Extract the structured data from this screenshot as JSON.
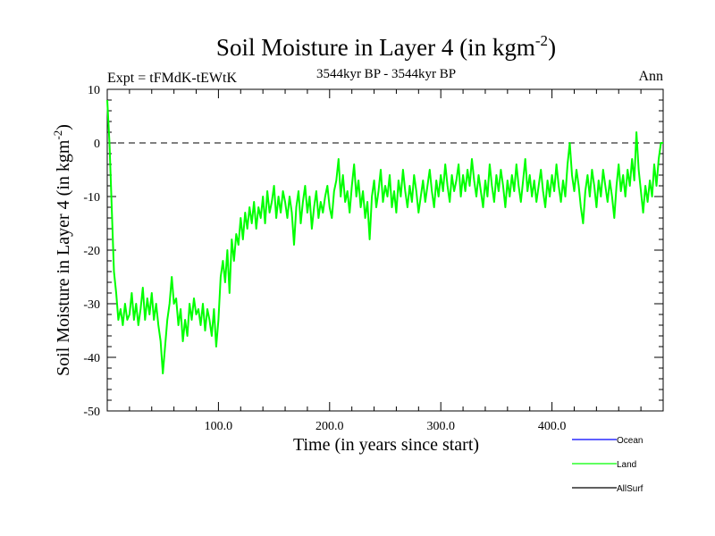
{
  "header": {
    "title": "Soil Moisture in Layer 4 (in kgm",
    "title_sup": "-2",
    "title_close": ")",
    "experiment": "Expt = tFMdK-tEWtK",
    "period": "3544kyr BP - 3544kyr BP",
    "season": "Ann"
  },
  "chart_data": {
    "type": "line",
    "title": "Soil Moisture in Layer 4 (in kgm-2)",
    "xlabel": "Time (in years since start)",
    "ylabel": "Soil Moisture in Layer 4 (in kgm-2)",
    "ylabel_main": "Soil Moisture in Layer 4 (in kgm",
    "ylabel_sup": "-2",
    "ylabel_close": ")",
    "xlim": [
      0,
      500
    ],
    "ylim": [
      -50,
      10
    ],
    "x_ticks": [
      100,
      200,
      300,
      400
    ],
    "x_tick_labels": [
      "100.0",
      "200.0",
      "300.0",
      "400.0"
    ],
    "y_ticks": [
      -50,
      -40,
      -30,
      -20,
      -10,
      0,
      10
    ],
    "y_tick_labels": [
      "-50",
      "-40",
      "-30",
      "-20",
      "-10",
      "0",
      "10"
    ],
    "reference_line": {
      "y": 0,
      "style": "dashed"
    },
    "legend": {
      "placement": "bottom-right",
      "entries": [
        {
          "name": "Ocean",
          "color": "#0000ff"
        },
        {
          "name": "Land",
          "color": "#00ff00"
        },
        {
          "name": "AllSurf",
          "color": "#000000"
        }
      ]
    },
    "series": [
      {
        "name": "Land",
        "color": "#00ff00",
        "points": [
          [
            0,
            8
          ],
          [
            2,
            0
          ],
          [
            4,
            -12
          ],
          [
            6,
            -24
          ],
          [
            8,
            -28
          ],
          [
            10,
            -33
          ],
          [
            12,
            -31
          ],
          [
            14,
            -34
          ],
          [
            16,
            -30
          ],
          [
            18,
            -33
          ],
          [
            20,
            -32
          ],
          [
            22,
            -28
          ],
          [
            24,
            -33
          ],
          [
            26,
            -30
          ],
          [
            28,
            -34
          ],
          [
            30,
            -31
          ],
          [
            32,
            -27
          ],
          [
            34,
            -33
          ],
          [
            36,
            -29
          ],
          [
            38,
            -32
          ],
          [
            40,
            -28
          ],
          [
            42,
            -33
          ],
          [
            44,
            -30
          ],
          [
            46,
            -34
          ],
          [
            48,
            -37
          ],
          [
            50,
            -43
          ],
          [
            52,
            -38
          ],
          [
            54,
            -33
          ],
          [
            56,
            -30
          ],
          [
            58,
            -25
          ],
          [
            60,
            -30
          ],
          [
            62,
            -29
          ],
          [
            64,
            -34
          ],
          [
            66,
            -31
          ],
          [
            68,
            -37
          ],
          [
            70,
            -33
          ],
          [
            72,
            -36
          ],
          [
            74,
            -30
          ],
          [
            76,
            -33
          ],
          [
            78,
            -29
          ],
          [
            80,
            -32
          ],
          [
            82,
            -31
          ],
          [
            84,
            -34
          ],
          [
            86,
            -30
          ],
          [
            88,
            -35
          ],
          [
            90,
            -31
          ],
          [
            92,
            -33
          ],
          [
            94,
            -36
          ],
          [
            96,
            -31
          ],
          [
            98,
            -38
          ],
          [
            100,
            -33
          ],
          [
            102,
            -25
          ],
          [
            104,
            -22
          ],
          [
            106,
            -26
          ],
          [
            108,
            -20
          ],
          [
            110,
            -28
          ],
          [
            112,
            -18
          ],
          [
            114,
            -22
          ],
          [
            116,
            -17
          ],
          [
            118,
            -19
          ],
          [
            120,
            -14
          ],
          [
            122,
            -18
          ],
          [
            124,
            -13
          ],
          [
            126,
            -16
          ],
          [
            128,
            -12
          ],
          [
            130,
            -15
          ],
          [
            132,
            -11
          ],
          [
            134,
            -16
          ],
          [
            136,
            -12
          ],
          [
            138,
            -14
          ],
          [
            140,
            -10
          ],
          [
            142,
            -15
          ],
          [
            144,
            -9
          ],
          [
            146,
            -13
          ],
          [
            148,
            -11
          ],
          [
            150,
            -8
          ],
          [
            152,
            -14
          ],
          [
            154,
            -10
          ],
          [
            156,
            -13
          ],
          [
            158,
            -9
          ],
          [
            160,
            -11
          ],
          [
            162,
            -14
          ],
          [
            164,
            -10
          ],
          [
            166,
            -13
          ],
          [
            168,
            -19
          ],
          [
            170,
            -12
          ],
          [
            172,
            -9
          ],
          [
            174,
            -15
          ],
          [
            176,
            -11
          ],
          [
            178,
            -8
          ],
          [
            180,
            -13
          ],
          [
            182,
            -10
          ],
          [
            184,
            -16
          ],
          [
            186,
            -12
          ],
          [
            188,
            -9
          ],
          [
            190,
            -14
          ],
          [
            192,
            -11
          ],
          [
            194,
            -13
          ],
          [
            196,
            -10
          ],
          [
            198,
            -8
          ],
          [
            200,
            -12
          ],
          [
            202,
            -14
          ],
          [
            204,
            -9
          ],
          [
            206,
            -7
          ],
          [
            208,
            -3
          ],
          [
            210,
            -10
          ],
          [
            212,
            -6
          ],
          [
            214,
            -11
          ],
          [
            216,
            -9
          ],
          [
            218,
            -13
          ],
          [
            220,
            -8
          ],
          [
            222,
            -4
          ],
          [
            224,
            -10
          ],
          [
            226,
            -7
          ],
          [
            228,
            -12
          ],
          [
            230,
            -9
          ],
          [
            232,
            -14
          ],
          [
            234,
            -11
          ],
          [
            236,
            -18
          ],
          [
            238,
            -10
          ],
          [
            240,
            -7
          ],
          [
            242,
            -12
          ],
          [
            244,
            -9
          ],
          [
            246,
            -5
          ],
          [
            248,
            -11
          ],
          [
            250,
            -8
          ],
          [
            252,
            -10
          ],
          [
            254,
            -6
          ],
          [
            256,
            -12
          ],
          [
            258,
            -9
          ],
          [
            260,
            -13
          ],
          [
            262,
            -7
          ],
          [
            264,
            -10
          ],
          [
            266,
            -5
          ],
          [
            268,
            -9
          ],
          [
            270,
            -12
          ],
          [
            272,
            -8
          ],
          [
            274,
            -11
          ],
          [
            276,
            -6
          ],
          [
            278,
            -9
          ],
          [
            280,
            -13
          ],
          [
            282,
            -10
          ],
          [
            284,
            -7
          ],
          [
            286,
            -11
          ],
          [
            288,
            -8
          ],
          [
            290,
            -5
          ],
          [
            292,
            -9
          ],
          [
            294,
            -12
          ],
          [
            296,
            -7
          ],
          [
            298,
            -10
          ],
          [
            300,
            -6
          ],
          [
            302,
            -9
          ],
          [
            304,
            -4
          ],
          [
            306,
            -8
          ],
          [
            308,
            -11
          ],
          [
            310,
            -6
          ],
          [
            312,
            -9
          ],
          [
            314,
            -7
          ],
          [
            316,
            -4
          ],
          [
            318,
            -10
          ],
          [
            320,
            -6
          ],
          [
            322,
            -9
          ],
          [
            324,
            -5
          ],
          [
            326,
            -8
          ],
          [
            328,
            -3
          ],
          [
            330,
            -7
          ],
          [
            332,
            -10
          ],
          [
            334,
            -6
          ],
          [
            336,
            -9
          ],
          [
            338,
            -12
          ],
          [
            340,
            -7
          ],
          [
            342,
            -10
          ],
          [
            344,
            -4
          ],
          [
            346,
            -8
          ],
          [
            348,
            -11
          ],
          [
            350,
            -6
          ],
          [
            352,
            -9
          ],
          [
            354,
            -5
          ],
          [
            356,
            -8
          ],
          [
            358,
            -12
          ],
          [
            360,
            -7
          ],
          [
            362,
            -10
          ],
          [
            364,
            -6
          ],
          [
            366,
            -9
          ],
          [
            368,
            -4
          ],
          [
            370,
            -8
          ],
          [
            372,
            -11
          ],
          [
            374,
            -7
          ],
          [
            376,
            -3
          ],
          [
            378,
            -9
          ],
          [
            380,
            -6
          ],
          [
            382,
            -10
          ],
          [
            384,
            -7
          ],
          [
            386,
            -11
          ],
          [
            388,
            -8
          ],
          [
            390,
            -5
          ],
          [
            392,
            -9
          ],
          [
            394,
            -12
          ],
          [
            396,
            -7
          ],
          [
            398,
            -10
          ],
          [
            400,
            -6
          ],
          [
            402,
            -9
          ],
          [
            404,
            -4
          ],
          [
            406,
            -8
          ],
          [
            408,
            -11
          ],
          [
            410,
            -7
          ],
          [
            412,
            -10
          ],
          [
            414,
            -4
          ],
          [
            416,
            0
          ],
          [
            418,
            -6
          ],
          [
            420,
            -9
          ],
          [
            422,
            -5
          ],
          [
            424,
            -8
          ],
          [
            426,
            -12
          ],
          [
            428,
            -15
          ],
          [
            430,
            -9
          ],
          [
            432,
            -6
          ],
          [
            434,
            -10
          ],
          [
            436,
            -5
          ],
          [
            438,
            -8
          ],
          [
            440,
            -12
          ],
          [
            442,
            -7
          ],
          [
            444,
            -10
          ],
          [
            446,
            -5
          ],
          [
            448,
            -8
          ],
          [
            450,
            -11
          ],
          [
            452,
            -7
          ],
          [
            454,
            -10
          ],
          [
            456,
            -14
          ],
          [
            458,
            -8
          ],
          [
            460,
            -4
          ],
          [
            462,
            -9
          ],
          [
            464,
            -6
          ],
          [
            466,
            -10
          ],
          [
            468,
            -5
          ],
          [
            470,
            -8
          ],
          [
            472,
            -3
          ],
          [
            474,
            -7
          ],
          [
            476,
            2
          ],
          [
            478,
            -5
          ],
          [
            480,
            -9
          ],
          [
            482,
            -13
          ],
          [
            484,
            -8
          ],
          [
            486,
            -11
          ],
          [
            488,
            -7
          ],
          [
            490,
            -10
          ],
          [
            492,
            -4
          ],
          [
            494,
            -8
          ],
          [
            496,
            -3
          ],
          [
            498,
            0
          ],
          [
            500,
            0
          ]
        ]
      }
    ]
  }
}
